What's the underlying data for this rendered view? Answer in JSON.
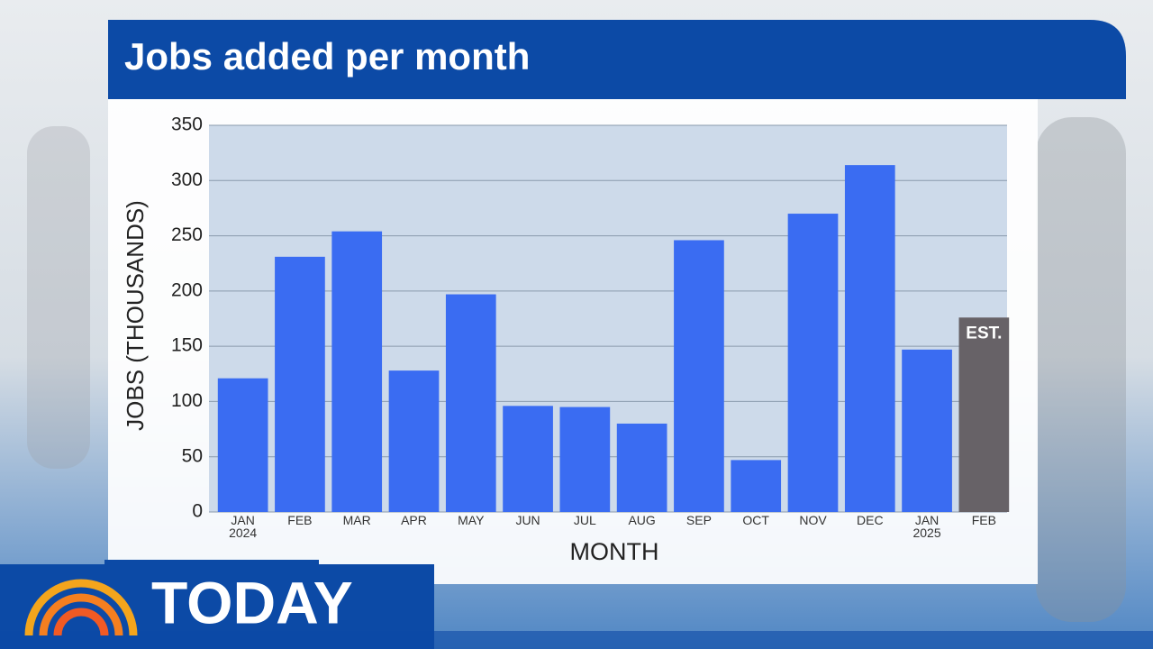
{
  "chart_data": {
    "type": "bar",
    "title": "Jobs added per month",
    "y_label": "JOBS (THOUSANDS)",
    "x_label": "MONTH",
    "categories": [
      "JAN\n2024",
      "FEB",
      "MAR",
      "APR",
      "MAY",
      "JUN",
      "JUL",
      "AUG",
      "SEP",
      "OCT",
      "NOV",
      "DEC",
      "JAN\n2025",
      "FEB"
    ],
    "values": [
      121,
      231,
      254,
      128,
      197,
      96,
      95,
      80,
      246,
      47,
      270,
      314,
      147,
      176
    ],
    "colors": [
      "#3a6cf2",
      "#3a6cf2",
      "#3a6cf2",
      "#3a6cf2",
      "#3a6cf2",
      "#3a6cf2",
      "#3a6cf2",
      "#3a6cf2",
      "#3a6cf2",
      "#3a6cf2",
      "#3a6cf2",
      "#3a6cf2",
      "#3a6cf2",
      "#676267"
    ],
    "annotation": "EST.",
    "ylim": [
      0,
      350
    ],
    "yticks": [
      0,
      50,
      100,
      150,
      200,
      250,
      300,
      350
    ],
    "grid": true
  },
  "branding": {
    "logo_text": "TODAY"
  }
}
